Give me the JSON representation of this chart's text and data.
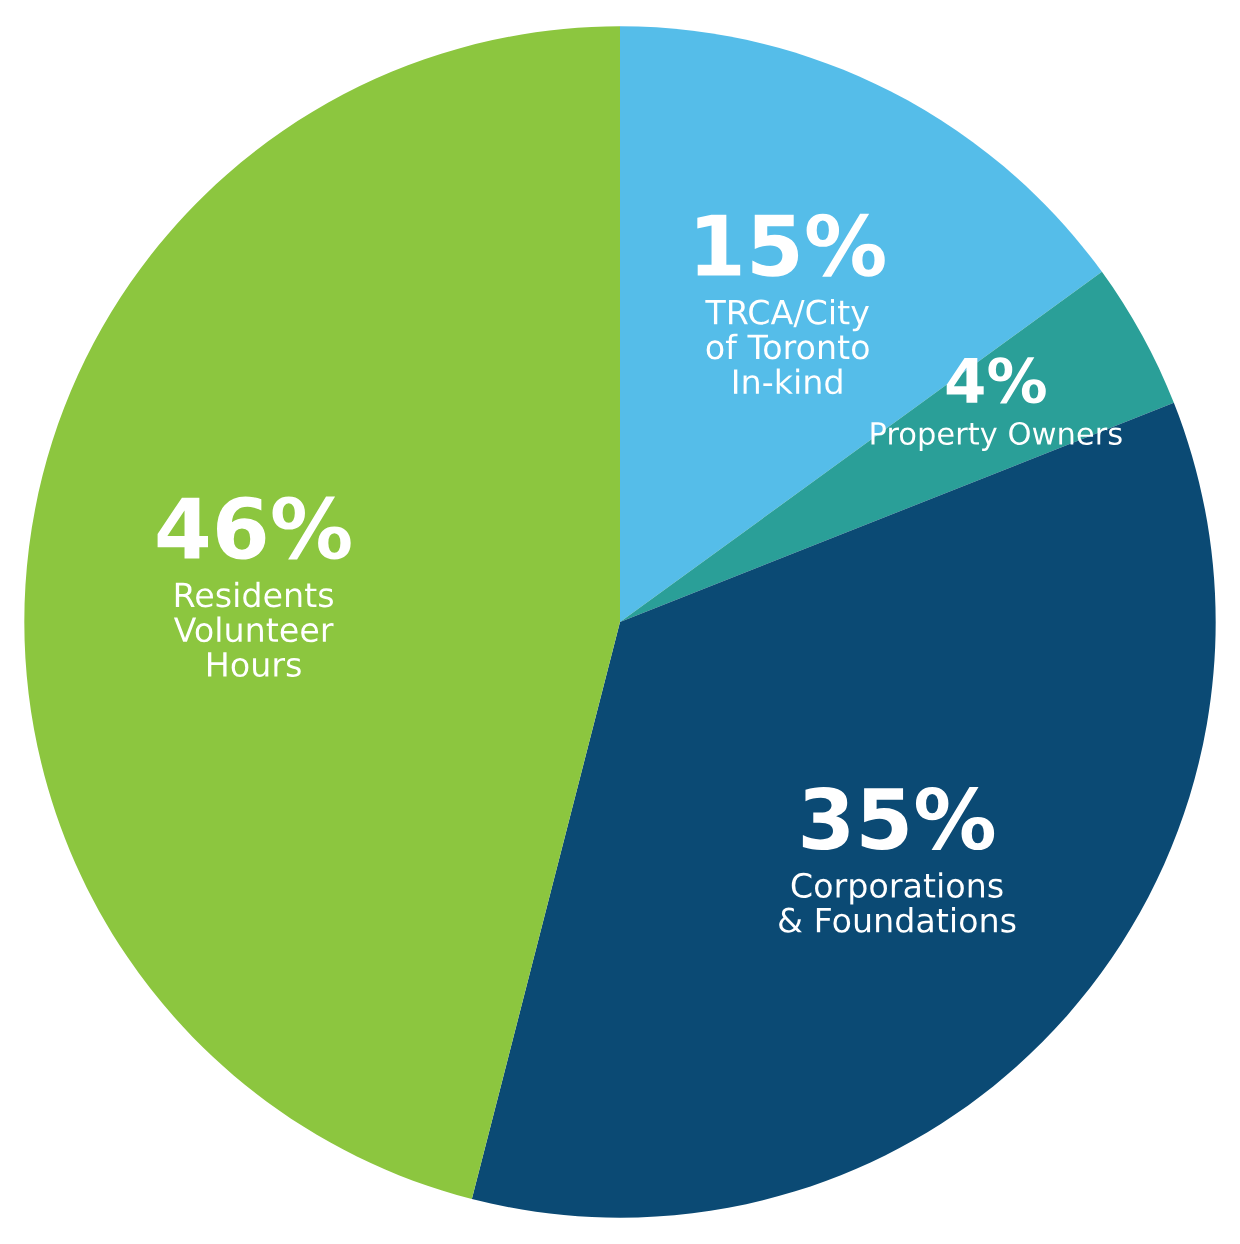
{
  "chart_data": {
    "type": "pie",
    "categories": [
      "TRCA/City\nof Toronto\nIn-kind",
      "Property Owners",
      "Corporations\n& Foundations",
      "Residents\nVolunteer\nHours"
    ],
    "values": [
      15,
      4,
      35,
      46
    ],
    "value_labels": [
      "15%",
      "4%",
      "35%",
      "46%"
    ],
    "colors": [
      "#55bde9",
      "#2a9f98",
      "#0b4a74",
      "#8cc63f"
    ],
    "legend": false
  }
}
